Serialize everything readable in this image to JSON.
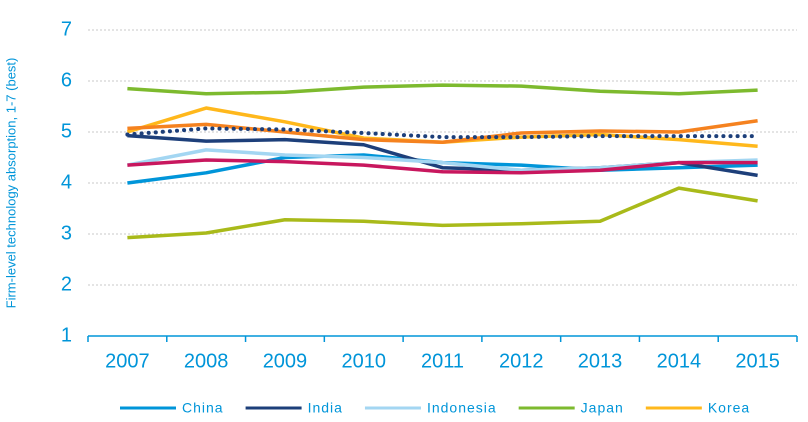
{
  "chart_data": {
    "type": "line",
    "y_label": "Firm-level technology absorption, 1-7 (best)",
    "categories": [
      "2007",
      "2008",
      "2009",
      "2010",
      "2011",
      "2012",
      "2013",
      "2014",
      "2015"
    ],
    "ylim": [
      1,
      7
    ],
    "yticks": [
      1,
      2,
      3,
      4,
      5,
      6,
      7
    ],
    "grid": true,
    "legend": "bottom",
    "series": [
      {
        "name": "China",
        "color": "#0095d9",
        "values": [
          4.0,
          4.2,
          4.5,
          4.55,
          4.4,
          4.35,
          4.25,
          4.3,
          4.35
        ]
      },
      {
        "name": "India",
        "color": "#1d3f7a",
        "values": [
          4.93,
          4.82,
          4.85,
          4.75,
          4.3,
          4.25,
          4.3,
          4.4,
          4.15
        ]
      },
      {
        "name": "Indonesia",
        "color": "#a3d6f2",
        "values": [
          4.35,
          4.65,
          4.55,
          4.5,
          4.4,
          4.25,
          4.3,
          4.4,
          4.45
        ]
      },
      {
        "name": "Japan",
        "color": "#7dba2e",
        "values": [
          5.85,
          5.75,
          5.78,
          5.88,
          5.92,
          5.9,
          5.8,
          5.75,
          5.82
        ]
      },
      {
        "name": "Korea",
        "color": "#ffb81c",
        "values": [
          5.0,
          5.47,
          5.2,
          4.88,
          4.8,
          4.9,
          4.95,
          4.85,
          4.72
        ]
      },
      {
        "color": "#f5821f",
        "values": [
          5.07,
          5.15,
          5.0,
          4.85,
          4.8,
          4.98,
          5.02,
          5.0,
          5.22
        ]
      },
      {
        "color": "#c8175e",
        "values": [
          4.35,
          4.45,
          4.42,
          4.35,
          4.22,
          4.2,
          4.25,
          4.4,
          4.4
        ]
      },
      {
        "color": "#a9ba1a",
        "values": [
          2.93,
          3.02,
          3.28,
          3.25,
          3.17,
          3.2,
          3.25,
          3.9,
          3.65
        ]
      },
      {
        "color": "#1d3f7a",
        "style": "dotted",
        "values": [
          4.95,
          5.07,
          5.05,
          4.98,
          4.9,
          4.9,
          4.92,
          4.92,
          4.92
        ]
      }
    ]
  }
}
